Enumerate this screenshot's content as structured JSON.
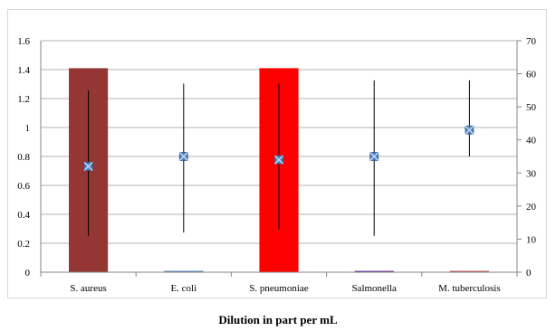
{
  "caption": "Dilution in part per mL",
  "chart_data": {
    "type": "bar",
    "categories": [
      "S. aureus",
      "E. coli",
      "S. pneumoniae",
      "Salmonella",
      "M. tuberculosis"
    ],
    "series": [
      {
        "kind": "bar",
        "axis": "left",
        "values": [
          1.41,
          0.005,
          1.41,
          0.005,
          0.005
        ],
        "colors": [
          "#943634",
          "#4f81bd",
          "#ff0000",
          "#7030a0",
          "#c0504d"
        ]
      },
      {
        "kind": "scatter",
        "axis": "right",
        "marker": "x-square",
        "color": "#4f81bd",
        "values": [
          32,
          35,
          34,
          35,
          43
        ],
        "low": [
          11,
          12,
          13,
          11,
          35
        ],
        "high": [
          55,
          57,
          57,
          58,
          58
        ]
      }
    ],
    "yleft_ticks": [
      "0",
      "0.2",
      "0.4",
      "0.6",
      "0.8",
      "1",
      "1.2",
      "1.4",
      "1.6"
    ],
    "yright_ticks": [
      "0",
      "10",
      "20",
      "30",
      "40",
      "50",
      "60",
      "70"
    ],
    "ylim_left": [
      0,
      1.6
    ],
    "ylim_right": [
      0,
      70
    ],
    "grid": true,
    "xlabel": "Dilution in part per mL"
  }
}
